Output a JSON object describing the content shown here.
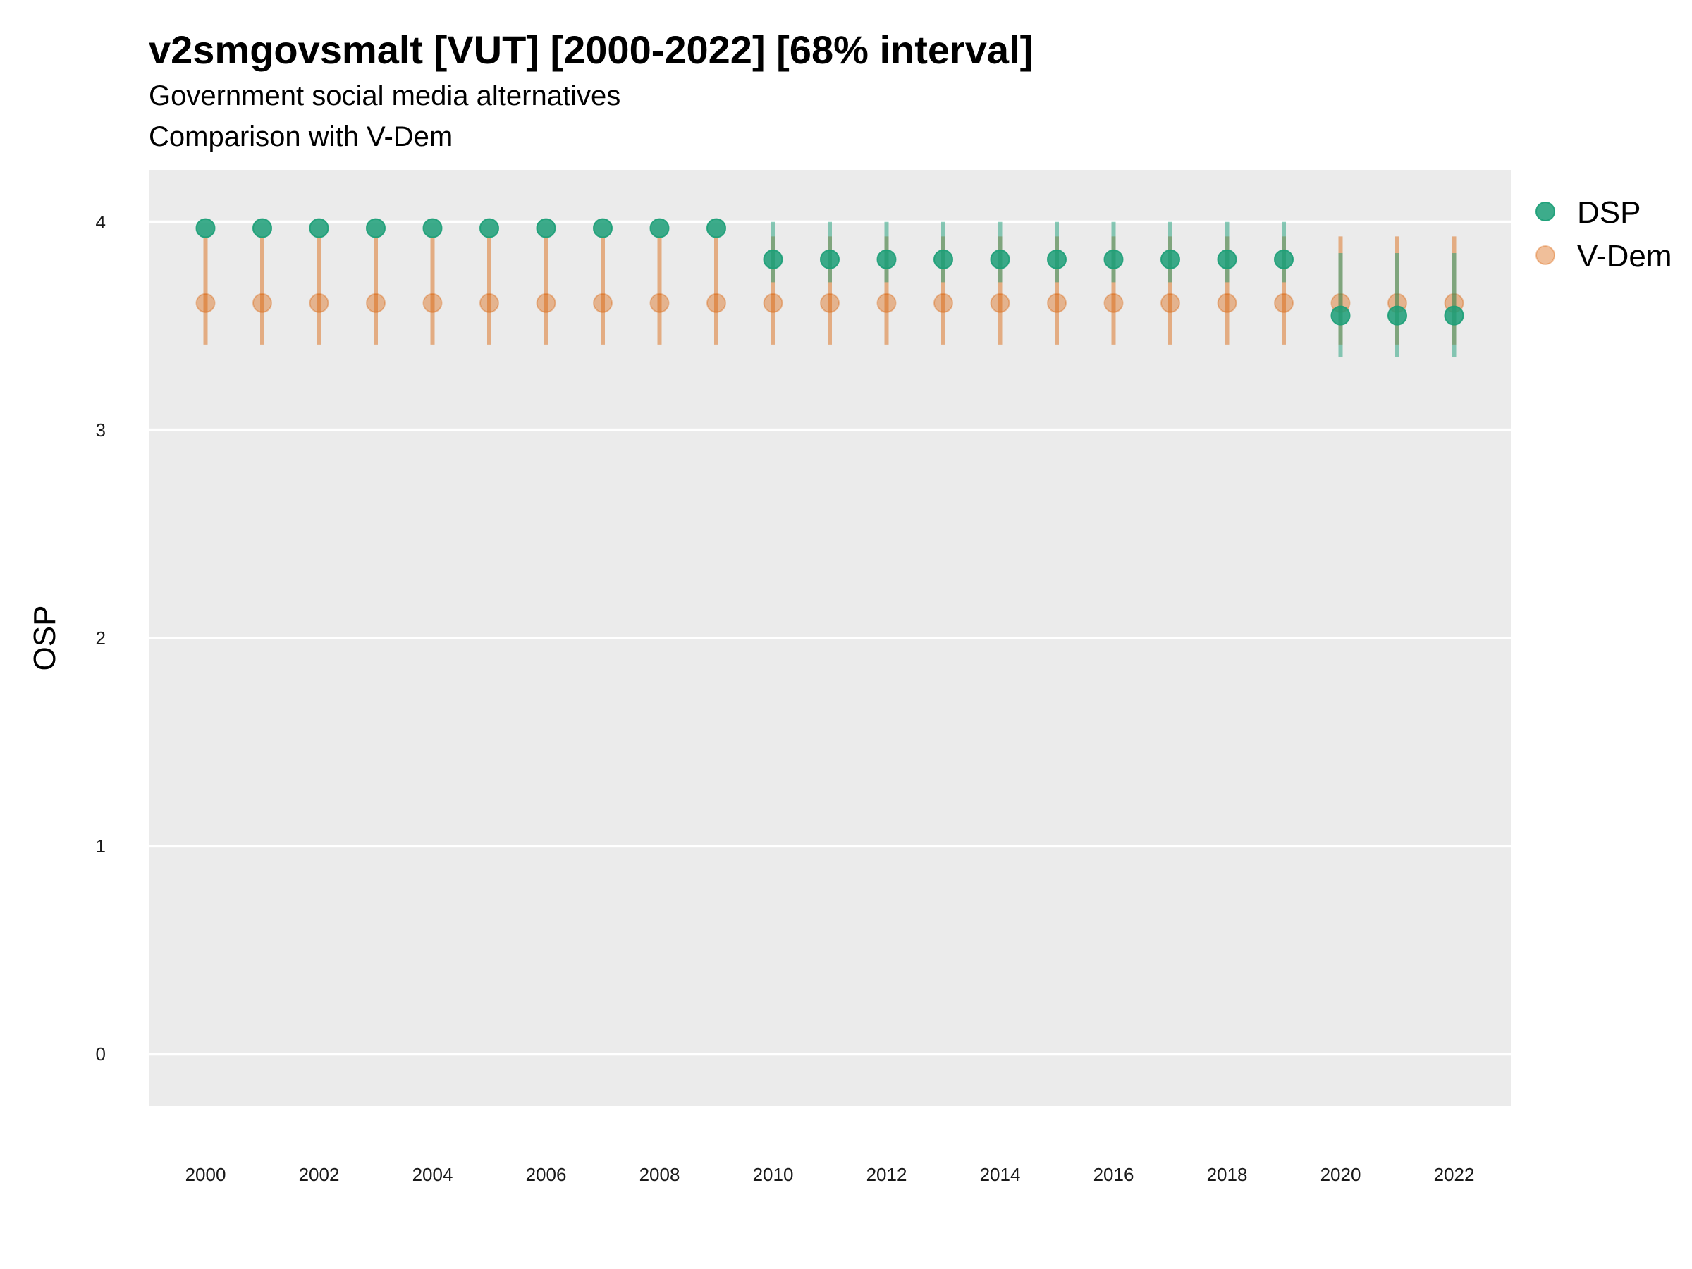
{
  "chart_data": {
    "type": "scatter",
    "title": "v2smgovsmalt [VUT] [2000-2022] [68% interval]",
    "subtitle": "Government social media alternatives",
    "caption": "Comparison with V-Dem",
    "ylabel": "OSP",
    "xlabel": "",
    "ylim": [
      -0.25,
      4.25
    ],
    "yticks": [
      0,
      1,
      2,
      3,
      4
    ],
    "xticks": [
      2000,
      2002,
      2004,
      2006,
      2008,
      2010,
      2012,
      2014,
      2016,
      2018,
      2020,
      2022
    ],
    "grid": true,
    "legend_position": "right",
    "x": [
      2000,
      2001,
      2002,
      2003,
      2004,
      2005,
      2006,
      2007,
      2008,
      2009,
      2010,
      2011,
      2012,
      2013,
      2014,
      2015,
      2016,
      2017,
      2018,
      2019,
      2020,
      2021,
      2022
    ],
    "series": [
      {
        "name": "DSP",
        "color": "#1b9e77",
        "values": [
          3.97,
          3.97,
          3.97,
          3.97,
          3.97,
          3.97,
          3.97,
          3.97,
          3.97,
          3.97,
          3.82,
          3.82,
          3.82,
          3.82,
          3.82,
          3.82,
          3.82,
          3.82,
          3.82,
          3.82,
          3.55,
          3.55,
          3.55
        ],
        "lower": [
          3.97,
          3.97,
          3.97,
          3.97,
          3.97,
          3.97,
          3.97,
          3.97,
          3.97,
          3.97,
          3.71,
          3.71,
          3.71,
          3.71,
          3.71,
          3.71,
          3.71,
          3.71,
          3.71,
          3.71,
          3.35,
          3.35,
          3.35
        ],
        "upper": [
          3.97,
          3.97,
          3.97,
          3.97,
          3.97,
          3.97,
          3.97,
          3.97,
          3.97,
          3.97,
          4.0,
          4.0,
          4.0,
          4.0,
          4.0,
          4.0,
          4.0,
          4.0,
          4.0,
          4.0,
          3.85,
          3.85,
          3.85
        ]
      },
      {
        "name": "V-Dem",
        "color": "#d95f02",
        "values": [
          3.61,
          3.61,
          3.61,
          3.61,
          3.61,
          3.61,
          3.61,
          3.61,
          3.61,
          3.61,
          3.61,
          3.61,
          3.61,
          3.61,
          3.61,
          3.61,
          3.61,
          3.61,
          3.61,
          3.61,
          3.61,
          3.61,
          3.61
        ],
        "lower": [
          3.41,
          3.41,
          3.41,
          3.41,
          3.41,
          3.41,
          3.41,
          3.41,
          3.41,
          3.41,
          3.41,
          3.41,
          3.41,
          3.41,
          3.41,
          3.41,
          3.41,
          3.41,
          3.41,
          3.41,
          3.41,
          3.41,
          3.41
        ],
        "upper": [
          3.93,
          3.93,
          3.93,
          3.93,
          3.93,
          3.93,
          3.93,
          3.93,
          3.93,
          3.93,
          3.93,
          3.93,
          3.93,
          3.93,
          3.93,
          3.93,
          3.93,
          3.93,
          3.93,
          3.93,
          3.93,
          3.93,
          3.93
        ]
      }
    ]
  }
}
